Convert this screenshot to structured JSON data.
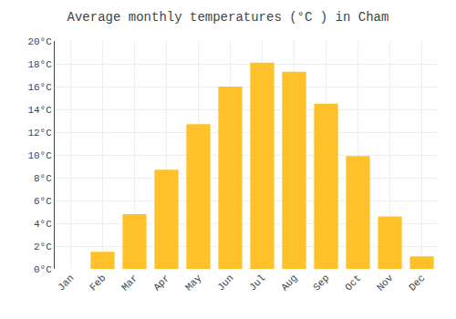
{
  "chart_data": {
    "type": "bar",
    "title": "Average monthly temperatures (°C ) in Cham",
    "categories": [
      "Jan",
      "Feb",
      "Mar",
      "Apr",
      "May",
      "Jun",
      "Jul",
      "Aug",
      "Sep",
      "Oct",
      "Nov",
      "Dec"
    ],
    "values": [
      0,
      1.5,
      4.8,
      8.7,
      12.7,
      16.0,
      18.1,
      17.3,
      14.5,
      9.9,
      4.6,
      1.1
    ],
    "color": "#FFC12A",
    "ylim": [
      0,
      20
    ],
    "yticks": [
      {
        "value": 0,
        "label": "0°C"
      },
      {
        "value": 2,
        "label": "2°C"
      },
      {
        "value": 4,
        "label": "4°C"
      },
      {
        "value": 6,
        "label": "6°C"
      },
      {
        "value": 8,
        "label": "8°C"
      },
      {
        "value": 10,
        "label": "10°C"
      },
      {
        "value": 12,
        "label": "12°C"
      },
      {
        "value": 14,
        "label": "14°C"
      },
      {
        "value": 16,
        "label": "16°C"
      },
      {
        "value": 18,
        "label": "18°C"
      },
      {
        "value": 20,
        "label": "20°C"
      }
    ],
    "grid": true
  }
}
